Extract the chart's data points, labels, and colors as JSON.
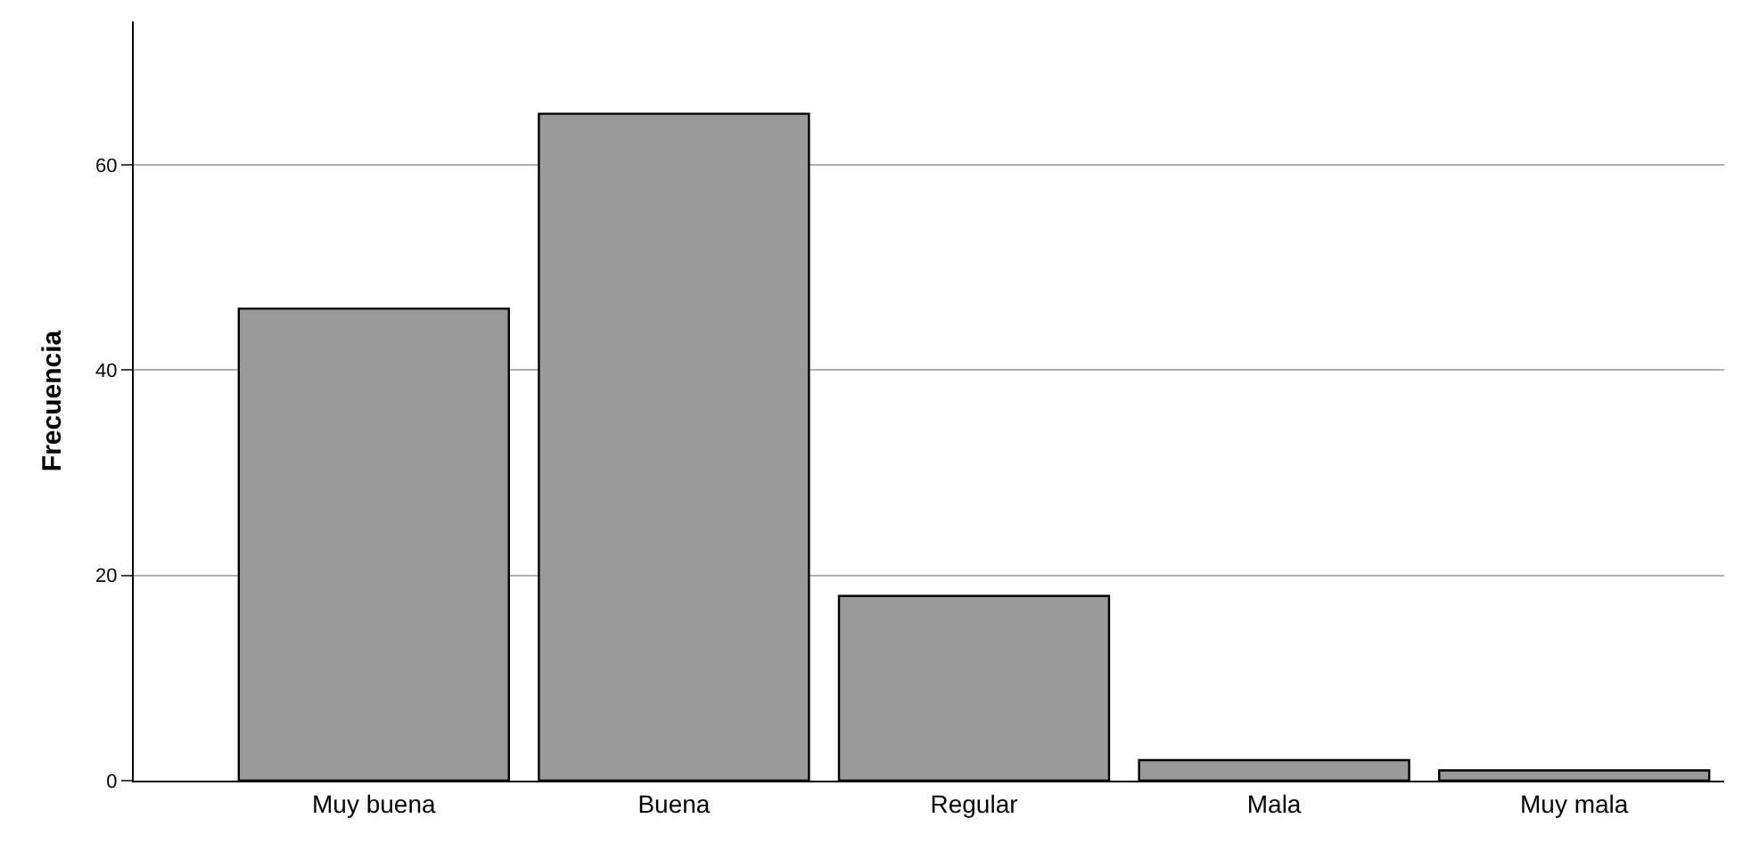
{
  "chart_data": {
    "type": "bar",
    "ylabel": "Frecuencia",
    "categories": [
      "Muy buena",
      "Buena",
      "Regular",
      "Mala",
      "Muy mala"
    ],
    "values": [
      46,
      65,
      18,
      2,
      1
    ],
    "color": "#999999",
    "ylim": [
      0,
      74
    ],
    "yticks": [
      0,
      20,
      40,
      60
    ],
    "grid": "y"
  }
}
